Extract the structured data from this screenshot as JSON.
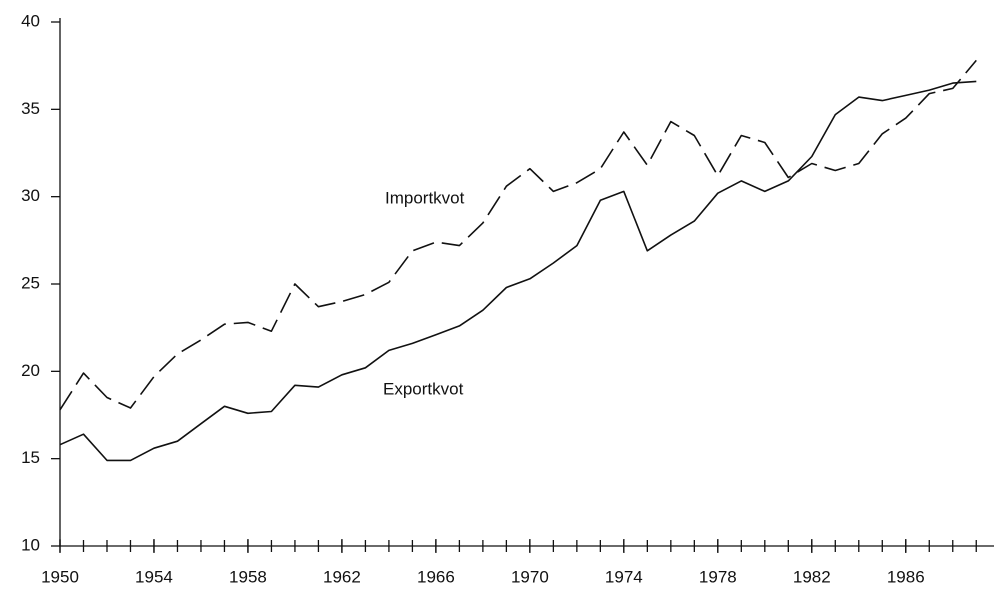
{
  "chart_data": {
    "type": "line",
    "x": [
      1950,
      1951,
      1952,
      1953,
      1954,
      1955,
      1956,
      1957,
      1958,
      1959,
      1960,
      1961,
      1962,
      1963,
      1964,
      1965,
      1966,
      1967,
      1968,
      1969,
      1970,
      1971,
      1972,
      1973,
      1974,
      1975,
      1976,
      1977,
      1978,
      1979,
      1980,
      1981,
      1982,
      1983,
      1984,
      1985,
      1986,
      1987,
      1988,
      1989
    ],
    "series": [
      {
        "name": "Exportkvot",
        "color": "#111111",
        "dash": false,
        "values": [
          15.8,
          16.4,
          14.9,
          14.9,
          15.6,
          16.0,
          17.0,
          18.0,
          17.6,
          17.7,
          19.2,
          19.1,
          19.8,
          20.2,
          21.2,
          21.6,
          22.1,
          22.6,
          23.5,
          24.8,
          25.3,
          26.2,
          27.2,
          29.8,
          30.3,
          26.9,
          27.8,
          28.6,
          30.2,
          30.9,
          30.3,
          30.9,
          32.3,
          34.7,
          35.7,
          35.5,
          35.8,
          36.1,
          36.5,
          36.6
        ]
      },
      {
        "name": "Importkvot",
        "color": "#111111",
        "dash": true,
        "values": [
          17.8,
          19.9,
          18.5,
          17.9,
          19.7,
          21.0,
          21.8,
          22.7,
          22.8,
          22.3,
          25.0,
          23.7,
          24.0,
          24.4,
          25.1,
          26.9,
          27.4,
          27.2,
          28.5,
          30.6,
          31.6,
          30.3,
          30.8,
          31.6,
          33.7,
          31.8,
          34.3,
          33.5,
          31.2,
          33.5,
          33.1,
          31.1,
          31.9,
          31.5,
          31.9,
          33.6,
          34.5,
          35.9,
          36.2,
          37.8
        ]
      }
    ],
    "xlim": [
      1950,
      1989.5
    ],
    "ylim": [
      10,
      40
    ],
    "xticks": [
      1950,
      1954,
      1958,
      1962,
      1966,
      1970,
      1974,
      1978,
      1982,
      1986
    ],
    "x_minor_ticks": [
      1950,
      1951,
      1952,
      1953,
      1954,
      1955,
      1956,
      1957,
      1958,
      1959,
      1960,
      1961,
      1962,
      1963,
      1964,
      1965,
      1966,
      1967,
      1968,
      1969,
      1970,
      1971,
      1972,
      1973,
      1974,
      1975,
      1976,
      1977,
      1978,
      1979,
      1980,
      1981,
      1982,
      1983,
      1984,
      1985,
      1986,
      1987,
      1988,
      1989
    ],
    "yticks": [
      10,
      15,
      20,
      25,
      30,
      35,
      40
    ],
    "grid": false
  }
}
